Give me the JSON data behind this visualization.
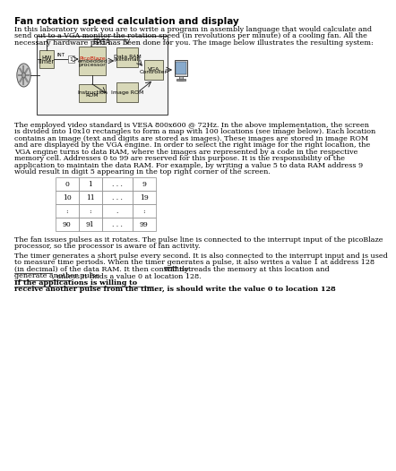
{
  "title": "Fan rotation speed calculation and display",
  "intro_lines": [
    "In this laboratory work you are to write a program in assembly language that would calculate and",
    "send out to a VGA monitor the rotation speed (in revolutions per minute) of a cooling fan. All the",
    "necessary hardware part has been done for you. The image below illustrates the resulting system:"
  ],
  "paragraph1_lines": [
    "The employed video standard is VESA 800x600 @ 72Hz. In the above implementation, the screen",
    "is divided into 10x10 rectangles to form a map with 100 locations (see image below). Each location",
    "contains an image (text and digits are stored as images). These images are stored in image ROM",
    "and are displayed by the VGA engine. In order to select the right image for the right location, the",
    "VGA engine turns to data RAM, where the images are represented by a code in the respective",
    "memory cell. Addresses 0 to 99 are reserved for this purpose. It is the responsibility of the",
    "application to maintain the data RAM. For example, by writing a value 5 to data RAM address 9",
    "would result in digit 5 appearing in the top right corner of the screen."
  ],
  "paragraph2_lines": [
    "The fan issues pulses as it rotates. The pulse line is connected to the interrupt input of the picoBlaze",
    "processor, so the processor is aware of fan activity."
  ],
  "paragraph3_lines": [
    {
      "text": "The timer generates a short pulse every second. It is also connected to the interrupt input and is used",
      "underline": false,
      "bold": false
    },
    {
      "text": "to measure time periods. When the timer generates a pulse, it also writes a value 1 at address 128",
      "underline": false,
      "bold": false
    },
    {
      "text": "(in decimal) of the data RAM. It then constantly reads the memory at this location and ",
      "underline": false,
      "bold": false,
      "suffix_underline": "will not",
      "suffix_ul": true
    },
    {
      "text": "generate another pulse",
      "underline": true,
      "bold": false,
      "suffix": ", unless it finds a value 0 at location 128. ",
      "suffix_ul": false
    },
    {
      "text": "If the applications is willing to",
      "underline": true,
      "bold": true
    },
    {
      "text": "receive another pulse from the timer, is should write the value 0 to location 128",
      "underline": true,
      "bold": true,
      "suffix": ".",
      "suffix_ul": false
    }
  ],
  "table_rows": [
    [
      "0",
      "1",
      ". . .",
      "9"
    ],
    [
      "10",
      "11",
      ". . .",
      "19"
    ],
    [
      ":",
      ":",
      ".",
      ":"
    ],
    [
      "90",
      "91",
      ". . .",
      "99"
    ]
  ],
  "bg_color": "#ffffff",
  "fpga_label": "FPGA",
  "box_hw_timer": "HW\nTimer",
  "box_picoblaze_top": "PicoBlaze",
  "box_picoblaze_bottom": "embedded\nprocessor",
  "box_data_ram": "Data RAM\n(external)",
  "box_instr_rom": "Instruction\nROM",
  "box_image_rom": "Image ROM",
  "box_vga": "VGA\nController",
  "int_label": "INT"
}
